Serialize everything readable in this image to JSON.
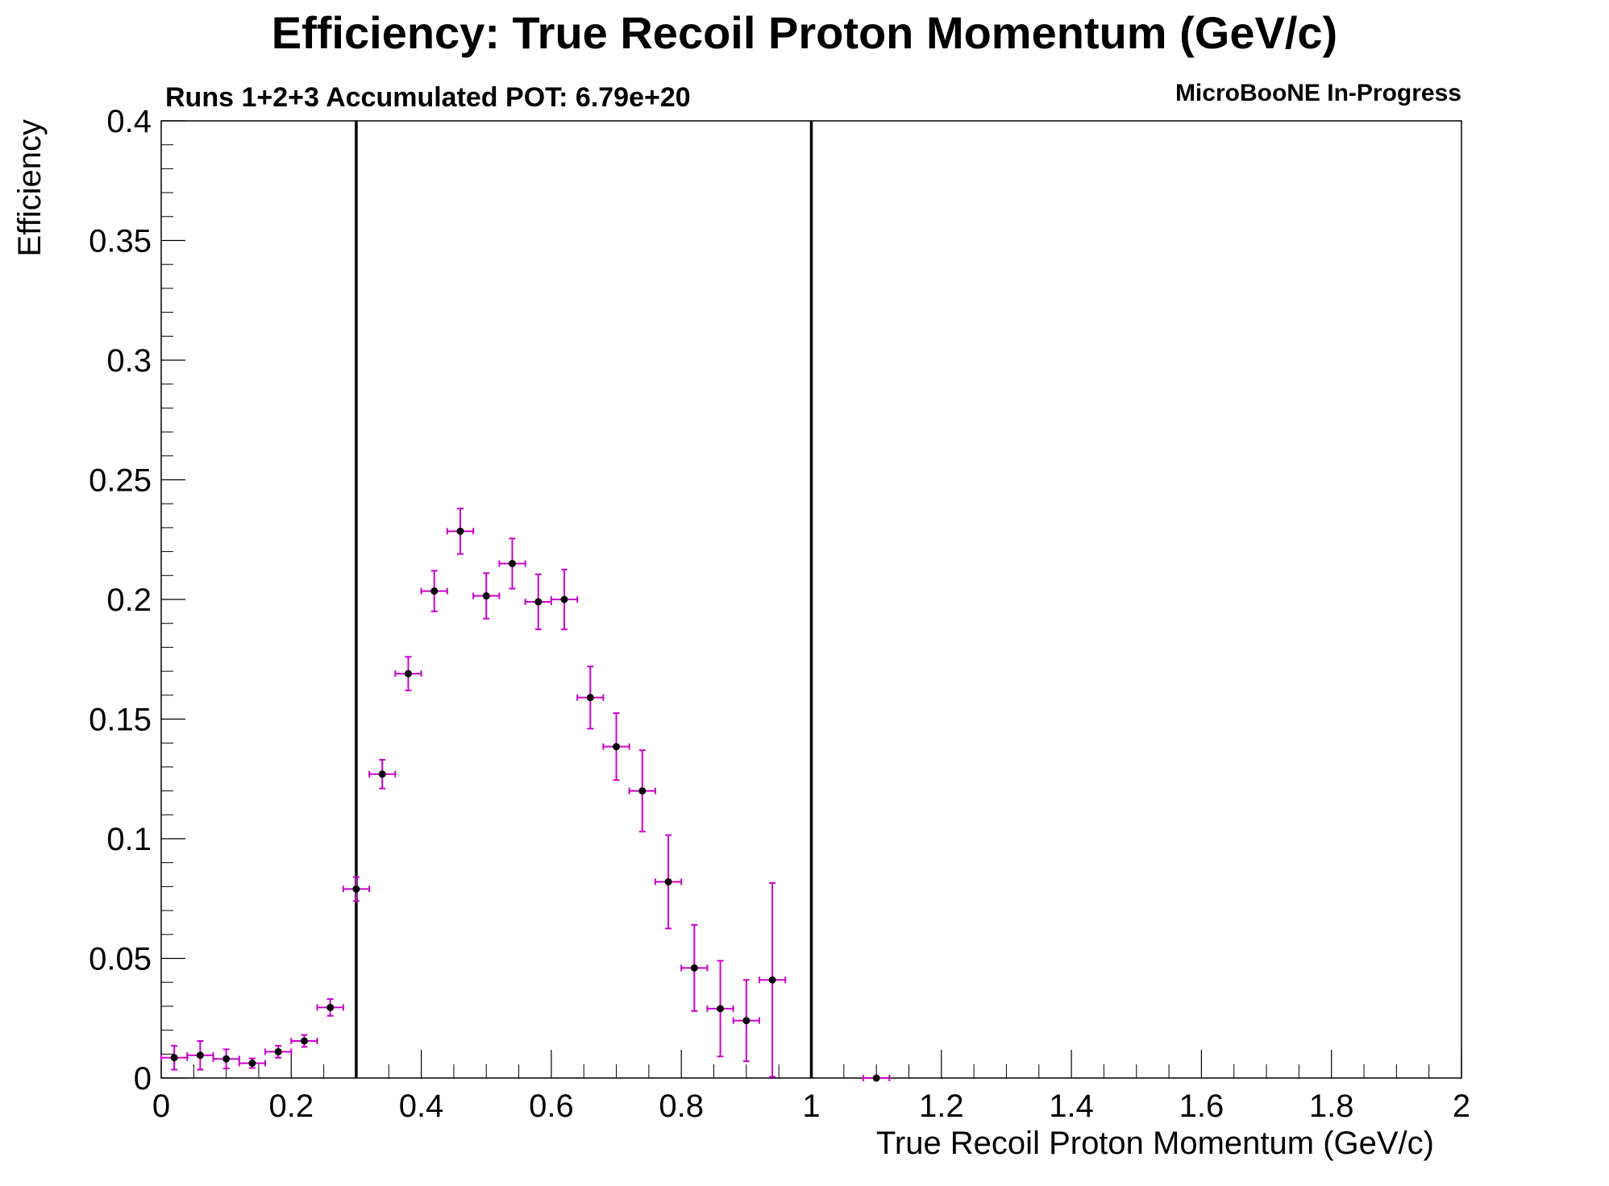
{
  "chart_data": {
    "type": "scatter",
    "title": "Efficiency: True Recoil Proton Momentum (GeV/c)",
    "subtitle_left": "Runs 1+2+3 Accumulated POT: 6.79e+20",
    "subtitle_right": "MicroBooNE In-Progress",
    "xlabel": "True Recoil Proton Momentum (GeV/c)",
    "ylabel": "Efficiency",
    "xlim": [
      0,
      2
    ],
    "ylim": [
      0,
      0.4
    ],
    "x_ticks": [
      "0",
      "0.2",
      "0.4",
      "0.6",
      "0.8",
      "1",
      "1.2",
      "1.4",
      "1.6",
      "1.8",
      "2"
    ],
    "y_ticks": [
      "0",
      "0.05",
      "0.1",
      "0.15",
      "0.2",
      "0.25",
      "0.3",
      "0.35",
      "0.4"
    ],
    "grid": false,
    "vertical_lines": [
      0.3,
      1.0
    ],
    "colors": {
      "error_bars": "#cc00cc",
      "markers": "#000000",
      "cut_lines": "#000000",
      "frame": "#000000"
    },
    "series": [
      {
        "x": [
          0.02,
          0.06,
          0.1,
          0.14,
          0.18,
          0.22,
          0.26,
          0.3,
          0.34,
          0.38,
          0.42,
          0.46,
          0.5,
          0.54,
          0.58,
          0.62,
          0.66,
          0.7,
          0.74,
          0.78,
          0.82,
          0.86,
          0.9,
          0.94,
          1.1
        ],
        "xerr": [
          0.02,
          0.02,
          0.02,
          0.02,
          0.02,
          0.02,
          0.02,
          0.02,
          0.02,
          0.02,
          0.02,
          0.02,
          0.02,
          0.02,
          0.02,
          0.02,
          0.02,
          0.02,
          0.02,
          0.02,
          0.02,
          0.02,
          0.02,
          0.02,
          0.02
        ],
        "y": [
          0.0085,
          0.0095,
          0.008,
          0.0062,
          0.011,
          0.0155,
          0.0295,
          0.079,
          0.127,
          0.169,
          0.2035,
          0.2285,
          0.2015,
          0.215,
          0.199,
          0.2,
          0.159,
          0.1385,
          0.12,
          0.082,
          0.046,
          0.029,
          0.024,
          0.041,
          0.0
        ],
        "yerr": [
          0.005,
          0.006,
          0.004,
          0.002,
          0.0025,
          0.0025,
          0.0035,
          0.005,
          0.006,
          0.007,
          0.0085,
          0.0095,
          0.0095,
          0.0105,
          0.0115,
          0.0125,
          0.013,
          0.014,
          0.017,
          0.0195,
          0.018,
          0.02,
          0.017,
          0.0405,
          0.0
        ]
      }
    ]
  }
}
